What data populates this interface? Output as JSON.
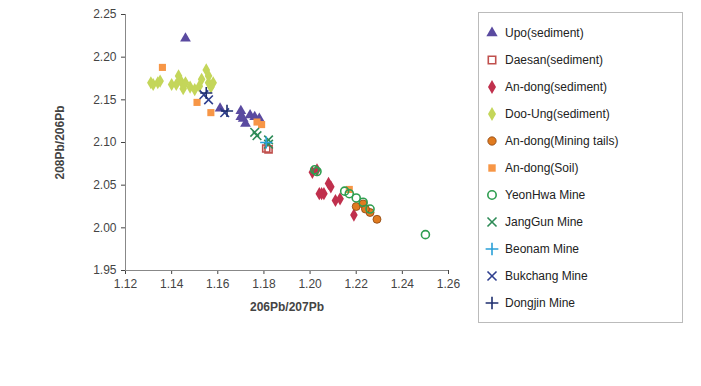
{
  "chart_data": {
    "type": "scatter",
    "x_label": "206Pb/207Pb",
    "y_label": "208Pb/206Pb",
    "xlim": [
      1.12,
      1.26
    ],
    "ylim": [
      1.95,
      2.25
    ],
    "xticks": [
      1.12,
      1.14,
      1.16,
      1.18,
      {
        "value": 1.2,
        "label": "1.20"
      },
      1.22,
      1.24,
      1.26
    ],
    "yticks": [
      1.95,
      {
        "value": 2,
        "label": "2.00"
      },
      2.05,
      {
        "value": 2.1,
        "label": "2.10"
      },
      2.15,
      {
        "value": 2.2,
        "label": "2.20"
      },
      2.25
    ],
    "grid": false,
    "legend": "right",
    "series": [
      {
        "name": "Upo(sediment)",
        "color": "#5a4aa0",
        "marker": "triangle",
        "x": [
          1.146,
          1.161,
          1.17,
          1.171,
          1.172,
          1.174,
          1.176,
          1.178,
          1.17
        ],
        "y": [
          2.222,
          2.14,
          2.137,
          2.128,
          2.122,
          2.132,
          2.13,
          2.128,
          2.13
        ]
      },
      {
        "name": "Daesan(sediment)",
        "color": "#c0504d",
        "marker": "open-square",
        "x": [
          1.181,
          1.182
        ],
        "y": [
          2.093,
          2.092
        ]
      },
      {
        "name": "An-dong(sediment)",
        "color": "#c0304d",
        "marker": "diamond",
        "x": [
          1.201,
          1.204,
          1.206,
          1.208,
          1.209,
          1.211,
          1.213,
          1.219,
          1.203,
          1.205
        ],
        "y": [
          2.065,
          2.04,
          2.04,
          2.052,
          2.048,
          2.032,
          2.034,
          2.015,
          2.068,
          2.04
        ]
      },
      {
        "name": "Doo-Ung(sediment)",
        "color": "#c4d65a",
        "marker": "diamond",
        "x": [
          1.131,
          1.132,
          1.134,
          1.135,
          1.14,
          1.142,
          1.143,
          1.144,
          1.145,
          1.146,
          1.148,
          1.15,
          1.152,
          1.153,
          1.155,
          1.156,
          1.157,
          1.158,
          1.156
        ],
        "y": [
          2.17,
          2.168,
          2.17,
          2.172,
          2.168,
          2.168,
          2.178,
          2.172,
          2.163,
          2.17,
          2.165,
          2.162,
          2.166,
          2.174,
          2.185,
          2.17,
          2.165,
          2.17,
          2.178
        ]
      },
      {
        "name": "An-dong(Mining tails)",
        "color": "#e07b20",
        "marker": "circle",
        "x": [
          1.22,
          1.223,
          1.226,
          1.229,
          1.224
        ],
        "y": [
          2.025,
          2.028,
          2.018,
          2.01,
          2.022
        ]
      },
      {
        "name": "An-dong(Soil)",
        "color": "#f79646",
        "marker": "square",
        "x": [
          1.136,
          1.151,
          1.157,
          1.177,
          1.179,
          1.217
        ],
        "y": [
          2.188,
          2.147,
          2.135,
          2.124,
          2.121,
          2.045
        ]
      },
      {
        "name": "YeonHwa Mine",
        "color": "#2e9e50",
        "marker": "open-circle",
        "x": [
          1.202,
          1.203,
          1.215,
          1.217,
          1.22,
          1.223,
          1.226,
          1.25
        ],
        "y": [
          2.068,
          2.066,
          2.043,
          2.04,
          2.035,
          2.03,
          2.022,
          1.992
        ]
      },
      {
        "name": "JangGun Mine",
        "color": "#2e8b57",
        "marker": "x",
        "x": [
          1.176,
          1.177,
          1.182,
          1.182
        ],
        "y": [
          2.112,
          2.108,
          2.103,
          2.098
        ]
      },
      {
        "name": "Beonam Mine",
        "color": "#2aa0d8",
        "marker": "+",
        "x": [
          1.181
        ],
        "y": [
          2.1
        ]
      },
      {
        "name": "Bukchang Mine",
        "color": "#2f3f8f",
        "marker": "x",
        "x": [
          1.154,
          1.156,
          1.163
        ],
        "y": [
          2.156,
          2.15,
          2.135
        ]
      },
      {
        "name": "Dongjin Mine",
        "color": "#1f2f6f",
        "marker": "+",
        "x": [
          1.155,
          1.164
        ],
        "y": [
          2.158,
          2.137
        ]
      }
    ]
  }
}
